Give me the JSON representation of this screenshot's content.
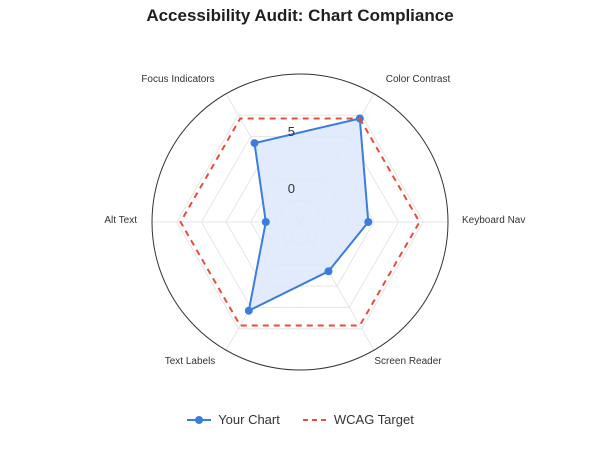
{
  "chart_data": {
    "type": "radar",
    "title": "Accessibility Audit: Chart Compliance",
    "axes": [
      "Color Contrast",
      "Keyboard Nav",
      "Screen Reader",
      "Text Labels",
      "Alt Text",
      "Focus Indicators"
    ],
    "r_ticks": [
      0,
      5
    ],
    "r_min": -3,
    "r_max": 10,
    "grid": true,
    "legend_position": "bottom",
    "series": [
      {
        "name": "Your Chart",
        "values": [
          7.5,
          3,
          2,
          6,
          0,
          5
        ],
        "color": "#3b7ddd",
        "fill": "#dce8fb",
        "style": "solid-with-markers"
      },
      {
        "name": "WCAG Target",
        "values": [
          7.5,
          7.5,
          7.5,
          7.5,
          7.5,
          7.5
        ],
        "color": "#e84c3d",
        "style": "dashed"
      }
    ]
  }
}
